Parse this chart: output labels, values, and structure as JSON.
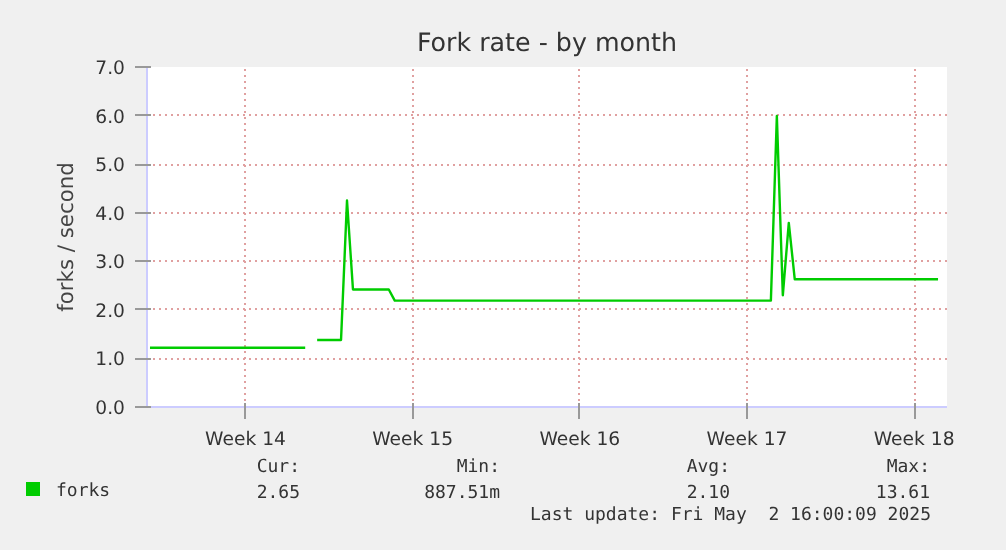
{
  "chart_data": {
    "type": "line",
    "title": "Fork rate - by month",
    "ylabel": "forks / second",
    "categories": [
      null,
      null,
      null,
      null,
      null,
      null,
      null,
      null,
      null,
      null,
      null,
      null,
      null,
      null,
      null,
      null,
      "Week 14",
      null,
      null,
      null,
      null,
      null,
      null,
      null,
      null,
      null,
      null,
      null,
      null,
      null,
      null,
      null,
      null,
      null,
      null,
      null,
      null,
      null,
      null,
      null,
      null,
      null,
      null,
      null,
      "Week 15",
      null,
      null,
      null,
      null,
      null,
      null,
      null,
      null,
      null,
      null,
      null,
      null,
      null,
      null,
      null,
      null,
      null,
      null,
      null,
      null,
      null,
      null,
      null,
      null,
      null,
      null,
      null,
      "Week 16",
      null,
      null,
      null,
      null,
      null,
      null,
      null,
      null,
      null,
      null,
      null,
      null,
      null,
      null,
      null,
      null,
      null,
      null,
      null,
      null,
      null,
      null,
      null,
      null,
      null,
      null,
      null,
      "Week 17",
      null,
      null,
      null,
      null,
      null,
      null,
      null,
      null,
      null,
      null,
      null,
      null,
      null,
      null,
      null,
      null,
      null,
      null,
      null,
      null,
      null,
      null,
      null,
      null,
      null,
      null,
      null,
      "Week 18",
      null,
      null,
      null,
      null,
      null
    ],
    "series": [
      {
        "name": "forks",
        "color": "#00cc00",
        "values": [
          1.22,
          1.22,
          1.22,
          1.22,
          1.22,
          1.22,
          1.22,
          1.22,
          1.22,
          1.22,
          1.22,
          1.22,
          1.22,
          1.22,
          1.22,
          1.22,
          1.22,
          1.22,
          1.22,
          1.22,
          1.22,
          1.22,
          1.22,
          1.22,
          1.22,
          1.22,
          1.22,
          null,
          1.38,
          1.38,
          1.38,
          1.38,
          1.38,
          4.25,
          2.42,
          2.42,
          2.42,
          2.42,
          2.42,
          2.42,
          2.42,
          2.19,
          2.19,
          2.19,
          2.19,
          2.19,
          2.19,
          2.19,
          2.19,
          2.19,
          2.19,
          2.19,
          2.19,
          2.19,
          2.19,
          2.19,
          2.19,
          2.19,
          2.19,
          2.19,
          2.19,
          2.19,
          2.19,
          2.19,
          2.19,
          2.19,
          2.19,
          2.19,
          2.19,
          2.19,
          2.19,
          2.19,
          2.19,
          2.19,
          2.19,
          2.19,
          2.19,
          2.19,
          2.19,
          2.19,
          2.19,
          2.19,
          2.19,
          2.19,
          2.19,
          2.19,
          2.19,
          2.19,
          2.19,
          2.19,
          2.19,
          2.19,
          2.19,
          2.19,
          2.19,
          2.19,
          2.19,
          2.19,
          2.19,
          2.19,
          2.19,
          2.19,
          2.19,
          2.19,
          2.19,
          5.99,
          2.3,
          3.79,
          2.63,
          2.63,
          2.63,
          2.63,
          2.63,
          2.63,
          2.63,
          2.63,
          2.63,
          2.63,
          2.63,
          2.63,
          2.63,
          2.63,
          2.63,
          2.63,
          2.63,
          2.63,
          2.63,
          2.63,
          2.63,
          2.63,
          2.63,
          2.63,
          2.63,
          null
        ]
      }
    ],
    "ylim": [
      0,
      7
    ],
    "yticks": [
      {
        "value": 0,
        "label": "0.0"
      },
      {
        "value": 1,
        "label": "1.0"
      },
      {
        "value": 2,
        "label": "2.0"
      },
      {
        "value": 3,
        "label": "3.0"
      },
      {
        "value": 4,
        "label": "4.0"
      },
      {
        "value": 5,
        "label": "5.0"
      },
      {
        "value": 6,
        "label": "6.0"
      },
      {
        "value": 7,
        "label": "7.0"
      }
    ],
    "grid": true,
    "legend": "bottom",
    "annotations": [
      "Cur: 2.65",
      "Min: 887.51m",
      "Avg: 2.10",
      "Max: 13.61",
      "Last update: Fri May  2 16:00:09 2025"
    ]
  }
}
